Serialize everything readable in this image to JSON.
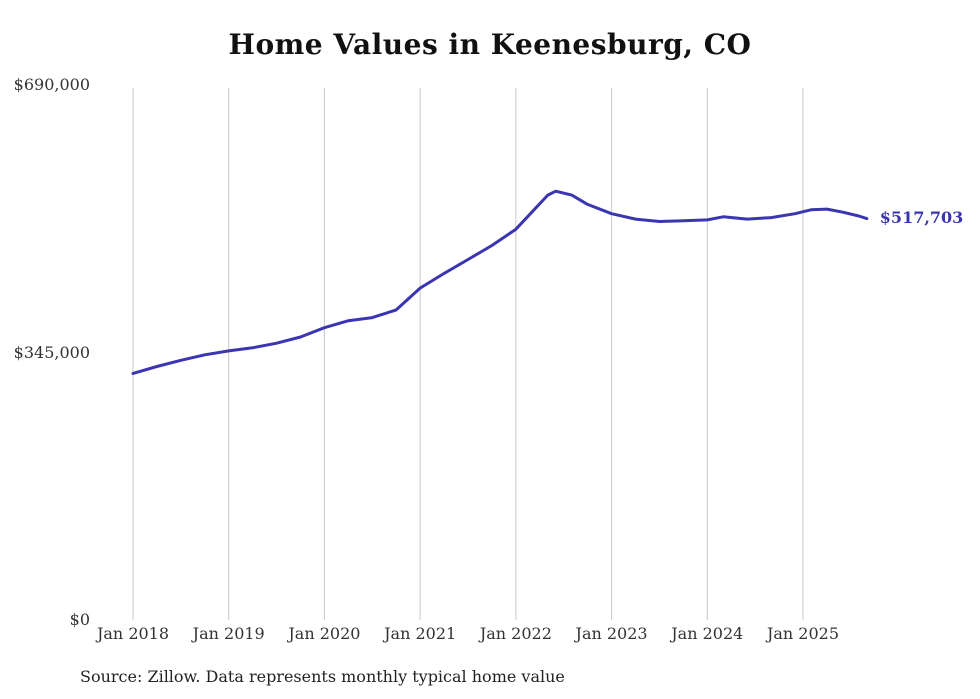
{
  "page": {
    "title": "Home Values in Keenesburg, CO",
    "source_note": "Source: Zillow. Data represents monthly typical home value"
  },
  "chart_data": {
    "type": "line",
    "title": "Home Values in Keenesburg, CO",
    "series_name": "Typical home value (monthly)",
    "x": [
      "2018-01",
      "2018-04",
      "2018-07",
      "2018-10",
      "2019-01",
      "2019-04",
      "2019-07",
      "2019-10",
      "2020-01",
      "2020-04",
      "2020-07",
      "2020-10",
      "2021-01",
      "2021-04",
      "2021-07",
      "2021-10",
      "2022-01",
      "2022-03",
      "2022-05",
      "2022-06",
      "2022-08",
      "2022-10",
      "2023-01",
      "2023-04",
      "2023-07",
      "2023-10",
      "2024-01",
      "2024-03",
      "2024-06",
      "2024-09",
      "2024-12",
      "2025-02",
      "2025-04",
      "2025-06",
      "2025-08",
      "2025-09"
    ],
    "values": [
      318000,
      327000,
      335000,
      342000,
      347000,
      351000,
      357000,
      365000,
      377000,
      386000,
      390000,
      400000,
      428000,
      447000,
      465000,
      483000,
      504000,
      526000,
      548000,
      553000,
      548000,
      536000,
      524000,
      517000,
      514000,
      515000,
      516000,
      520000,
      517000,
      519000,
      524000,
      529000,
      530000,
      526000,
      521000,
      517703
    ],
    "x_ticks": [
      "Jan 2018",
      "Jan 2019",
      "Jan 2020",
      "Jan 2021",
      "Jan 2022",
      "Jan 2023",
      "Jan 2024",
      "Jan 2025"
    ],
    "y_ticks": [
      {
        "label": "$0",
        "value": 0
      },
      {
        "label": "$345,000",
        "value": 345000
      },
      {
        "label": "$690,000",
        "value": 690000
      }
    ],
    "ylim": [
      0,
      690000
    ],
    "grid": "vertical",
    "legend": "none",
    "line_color": "#3b35b1",
    "end_label": "$517,703",
    "end_value": 517703
  }
}
